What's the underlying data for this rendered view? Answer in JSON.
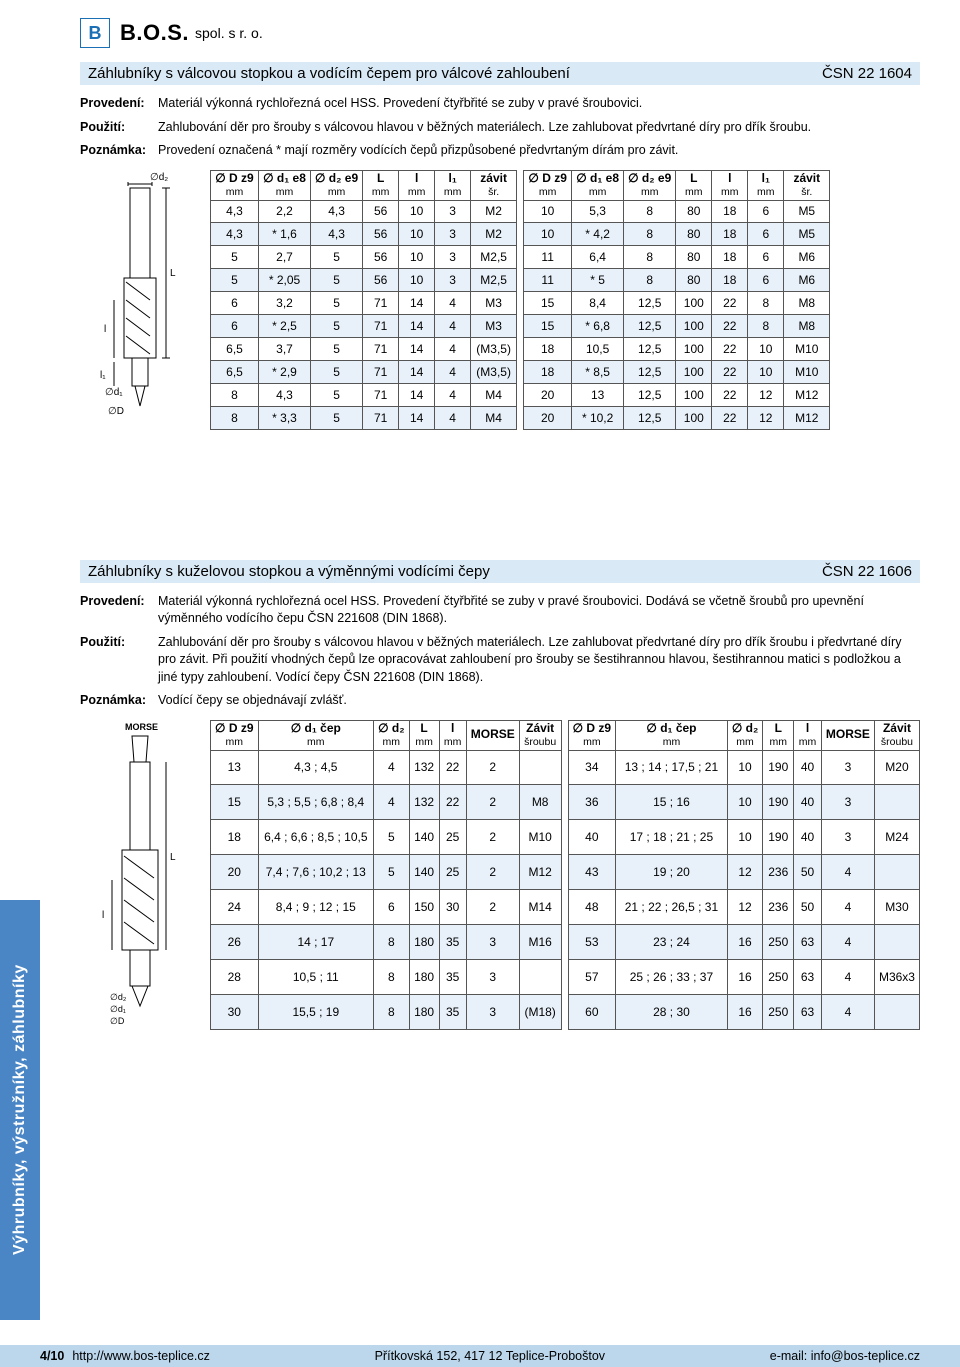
{
  "company": {
    "name": "B.O.S.",
    "suffix": "spol. s r. o."
  },
  "sidebar": "Výhrubníky, výstružníky, záhlubníky",
  "section1": {
    "title": "Záhlubníky s válcovou stopkou a vodícím čepem pro válcové zahloubení",
    "code": "ČSN 22 1604",
    "desc": {
      "provedeni_l": "Provedení:",
      "provedeni_t": "Materiál výkonná rychlořezná ocel HSS. Provedení čtyřbřité se zuby v pravé šroubovici.",
      "pouziti_l": "Použití:",
      "pouziti_t": "Zahlubování děr pro šrouby s válcovou hlavou v běžných materiálech. Lze zahlubovat předvrtané díry pro dřík šroubu.",
      "poznamka_l": "Poznámka:",
      "poznamka_t": "Provedení označená * mají rozměry vodících čepů přizpůsobené předvrtaným dírám pro závit."
    },
    "table1": {
      "headers": [
        "∅ D z9\nmm",
        "∅ d₁ e8\nmm",
        "∅ d₂ e9\nmm",
        "L\nmm",
        "l\nmm",
        "l₁\nmm",
        "závit\nšr."
      ],
      "rows": [
        [
          "4,3",
          "2,2",
          "4,3",
          "56",
          "10",
          "3",
          "M2"
        ],
        [
          "4,3",
          "* 1,6",
          "4,3",
          "56",
          "10",
          "3",
          "M2"
        ],
        [
          "5",
          "2,7",
          "5",
          "56",
          "10",
          "3",
          "M2,5"
        ],
        [
          "5",
          "* 2,05",
          "5",
          "56",
          "10",
          "3",
          "M2,5"
        ],
        [
          "6",
          "3,2",
          "5",
          "71",
          "14",
          "4",
          "M3"
        ],
        [
          "6",
          "* 2,5",
          "5",
          "71",
          "14",
          "4",
          "M3"
        ],
        [
          "6,5",
          "3,7",
          "5",
          "71",
          "14",
          "4",
          "(M3,5)"
        ],
        [
          "6,5",
          "* 2,9",
          "5",
          "71",
          "14",
          "4",
          "(M3,5)"
        ],
        [
          "8",
          "4,3",
          "5",
          "71",
          "14",
          "4",
          "M4"
        ],
        [
          "8",
          "* 3,3",
          "5",
          "71",
          "14",
          "4",
          "M4"
        ]
      ]
    },
    "table2": {
      "headers": [
        "∅ D z9\nmm",
        "∅ d₁ e8\nmm",
        "∅ d₂ e9\nmm",
        "L\nmm",
        "l\nmm",
        "l₁\nmm",
        "závit\nšr."
      ],
      "rows": [
        [
          "10",
          "5,3",
          "8",
          "80",
          "18",
          "6",
          "M5"
        ],
        [
          "10",
          "* 4,2",
          "8",
          "80",
          "18",
          "6",
          "M5"
        ],
        [
          "11",
          "6,4",
          "8",
          "80",
          "18",
          "6",
          "M6"
        ],
        [
          "11",
          "* 5",
          "8",
          "80",
          "18",
          "6",
          "M6"
        ],
        [
          "15",
          "8,4",
          "12,5",
          "100",
          "22",
          "8",
          "M8"
        ],
        [
          "15",
          "* 6,8",
          "12,5",
          "100",
          "22",
          "8",
          "M8"
        ],
        [
          "18",
          "10,5",
          "12,5",
          "100",
          "22",
          "10",
          "M10"
        ],
        [
          "18",
          "* 8,5",
          "12,5",
          "100",
          "22",
          "10",
          "M10"
        ],
        [
          "20",
          "13",
          "12,5",
          "100",
          "22",
          "12",
          "M12"
        ],
        [
          "20",
          "* 10,2",
          "12,5",
          "100",
          "22",
          "12",
          "M12"
        ]
      ]
    }
  },
  "section2": {
    "title": "Záhlubníky s kuželovou stopkou a výměnnými vodícími čepy",
    "code": "ČSN 22 1606",
    "desc": {
      "provedeni_l": "Provedení:",
      "provedeni_t": "Materiál výkonná rychlořezná ocel HSS. Provedení čtyřbřité se zuby v pravé šroubovici. Dodává se včetně šroubů pro upevnění výměnného vodícího čepu ČSN 221608 (DIN 1868).",
      "pouziti_l": "Použití:",
      "pouziti_t": "Zahlubování děr pro šrouby s válcovou hlavou v běžných materiálech. Lze zahlubovat předvrtané díry pro dřík šroubu i předvrtané díry pro závit. Při použití vhodných čepů lze opracovávat zahloubení pro šrouby se šestihrannou hlavou, šestihrannou matici s podložkou a jiné typy zahloubení. Vodící čepy ČSN 221608 (DIN 1868).",
      "poznamka_l": "Poznámka:",
      "poznamka_t": "Vodící čepy se objednávají zvlášť."
    },
    "table1": {
      "headers": [
        "∅ D z9\nmm",
        "∅ d₁ čep\nmm",
        "∅ d₂\nmm",
        "L\nmm",
        "l\nmm",
        "MORSE",
        "Závit\nšroubu"
      ],
      "rows": [
        [
          "13",
          "4,3 ; 4,5",
          "4",
          "132",
          "22",
          "2",
          ""
        ],
        [
          "15",
          "5,3 ; 5,5 ; 6,8 ; 8,4",
          "4",
          "132",
          "22",
          "2",
          "M8"
        ],
        [
          "18",
          "6,4 ; 6,6 ; 8,5 ; 10,5",
          "5",
          "140",
          "25",
          "2",
          "M10"
        ],
        [
          "20",
          "7,4 ; 7,6 ; 10,2 ; 13",
          "5",
          "140",
          "25",
          "2",
          "M12"
        ],
        [
          "24",
          "8,4 ; 9 ; 12 ; 15",
          "6",
          "150",
          "30",
          "2",
          "M14"
        ],
        [
          "26",
          "14 ; 17",
          "8",
          "180",
          "35",
          "3",
          "M16"
        ],
        [
          "28",
          "10,5 ; 11",
          "8",
          "180",
          "35",
          "3",
          ""
        ],
        [
          "30",
          "15,5 ; 19",
          "8",
          "180",
          "35",
          "3",
          "(M18)"
        ]
      ]
    },
    "table2": {
      "headers": [
        "∅ D z9\nmm",
        "∅ d₁ čep\nmm",
        "∅ d₂\nmm",
        "L\nmm",
        "l\nmm",
        "MORSE",
        "Závit\nšroubu"
      ],
      "rows": [
        [
          "34",
          "13 ; 14 ; 17,5 ; 21",
          "10",
          "190",
          "40",
          "3",
          "M20"
        ],
        [
          "36",
          "15 ; 16",
          "10",
          "190",
          "40",
          "3",
          ""
        ],
        [
          "40",
          "17 ; 18 ; 21 ; 25",
          "10",
          "190",
          "40",
          "3",
          "M24"
        ],
        [
          "43",
          "19 ; 20",
          "12",
          "236",
          "50",
          "4",
          ""
        ],
        [
          "48",
          "21 ; 22 ; 26,5 ; 31",
          "12",
          "236",
          "50",
          "4",
          "M30"
        ],
        [
          "53",
          "23 ; 24",
          "16",
          "250",
          "63",
          "4",
          ""
        ],
        [
          "57",
          "25 ; 26 ; 33 ; 37",
          "16",
          "250",
          "63",
          "4",
          "M36x3"
        ],
        [
          "60",
          "28 ; 30",
          "16",
          "250",
          "63",
          "4",
          ""
        ]
      ]
    },
    "morse_label": "MORSE"
  },
  "footer": {
    "page": "4/10",
    "url": "http://www.bos-teplice.cz",
    "addr": "Přítkovská 152, 417 12 Teplice-Proboštov",
    "email": "e-mail: info@bos-teplice.cz"
  }
}
